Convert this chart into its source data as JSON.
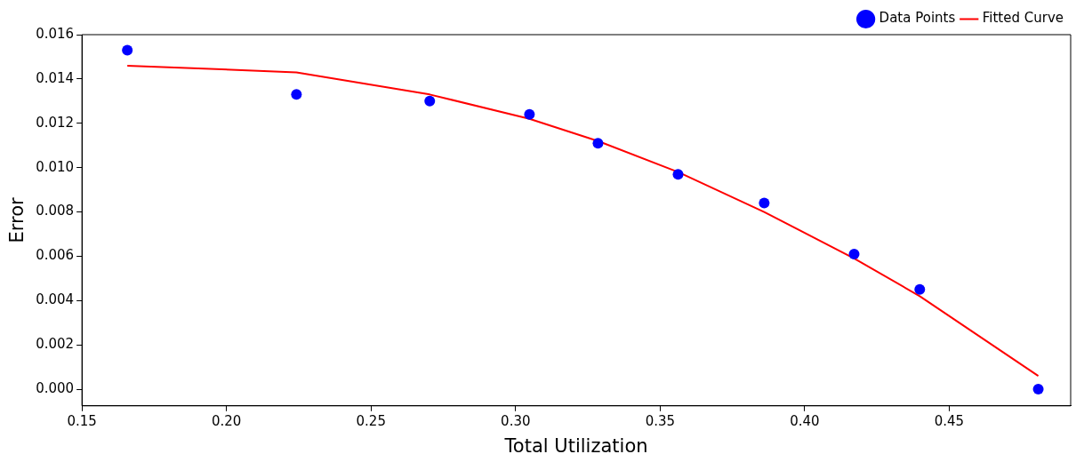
{
  "chart_data": {
    "type": "scatter",
    "xlabel": "Total Utilization",
    "ylabel": "Error",
    "xlim": [
      0.15,
      0.492
    ],
    "xticks": [
      {
        "value": 0.15,
        "label": "0.15"
      },
      {
        "value": 0.2,
        "label": "0.20"
      },
      {
        "value": 0.25,
        "label": "0.25"
      },
      {
        "value": 0.3,
        "label": "0.30"
      },
      {
        "value": 0.35,
        "label": "0.35"
      },
      {
        "value": 0.4,
        "label": "0.40"
      },
      {
        "value": 0.45,
        "label": "0.45"
      }
    ],
    "ylim": [
      -0.00075,
      0.016
    ],
    "yticks": [
      {
        "value": 0,
        "label": "0.000"
      },
      {
        "value": 0.002,
        "label": "0.002"
      },
      {
        "value": 0.004,
        "label": "0.004"
      },
      {
        "value": 0.006,
        "label": "0.006"
      },
      {
        "value": 0.008,
        "label": "0.008"
      },
      {
        "value": 0.01,
        "label": "0.010"
      },
      {
        "value": 0.012,
        "label": "0.012"
      },
      {
        "value": 0.014,
        "label": "0.014"
      },
      {
        "value": 0.016,
        "label": "0.016"
      }
    ],
    "grid": false,
    "legend": "top right",
    "series": [
      {
        "name": "Data Points",
        "type": "scatter",
        "marker": "circle",
        "color": "#0000ff",
        "x": [
          0.1657,
          0.2242,
          0.2703,
          0.3048,
          0.3285,
          0.3562,
          0.386,
          0.4171,
          0.4398,
          0.4808
        ],
        "values": [
          0.0153,
          0.0133,
          0.013,
          0.0124,
          0.0111,
          0.0097,
          0.0084,
          0.0061,
          0.0045,
          0.0
        ]
      },
      {
        "name": "Fitted Curve",
        "type": "line",
        "marker": "none",
        "color": "#ff0000",
        "line_style": "solid",
        "x": [
          0.1657,
          0.2242,
          0.2703,
          0.3048,
          0.3285,
          0.3562,
          0.386,
          0.4171,
          0.4398,
          0.4808
        ],
        "values": [
          0.0146,
          0.0143,
          0.0133,
          0.0122,
          0.0112,
          0.0098,
          0.008,
          0.0059,
          0.0042,
          0.0006
        ]
      }
    ]
  }
}
